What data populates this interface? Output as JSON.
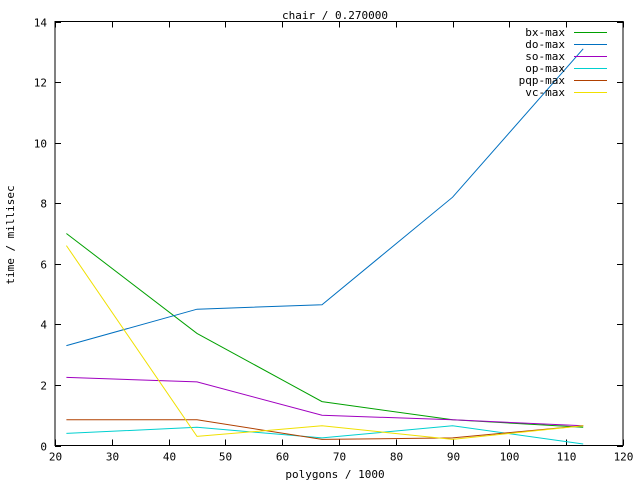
{
  "chart_data": {
    "type": "line",
    "title": "chair / 0.270000",
    "xlabel": "polygons / 1000",
    "ylabel": "time / millisec",
    "xlim": [
      20,
      120
    ],
    "ylim": [
      0,
      14
    ],
    "x_ticks": [
      20,
      30,
      40,
      50,
      60,
      70,
      80,
      90,
      100,
      110,
      120
    ],
    "y_ticks": [
      0,
      2,
      4,
      6,
      8,
      10,
      12,
      14
    ],
    "grid": false,
    "legend_position": "top-right",
    "x": [
      22,
      45,
      67,
      90,
      113
    ],
    "series": [
      {
        "name": "bx-max",
        "color": "#00a000",
        "values": [
          7.0,
          3.7,
          1.45,
          0.85,
          0.6
        ]
      },
      {
        "name": "do-max",
        "color": "#0070c0",
        "values": [
          3.3,
          4.5,
          4.65,
          8.2,
          13.1
        ]
      },
      {
        "name": "so-max",
        "color": "#a000c0",
        "values": [
          2.25,
          2.1,
          1.0,
          0.85,
          0.65
        ]
      },
      {
        "name": "op-max",
        "color": "#00d0d0",
        "values": [
          0.4,
          0.6,
          0.25,
          0.65,
          0.05
        ]
      },
      {
        "name": "pqp-max",
        "color": "#b04000",
        "values": [
          0.85,
          0.85,
          0.2,
          0.25,
          0.65
        ]
      },
      {
        "name": "vc-max",
        "color": "#f0e000",
        "values": [
          6.6,
          0.3,
          0.65,
          0.2,
          0.65
        ]
      }
    ]
  }
}
